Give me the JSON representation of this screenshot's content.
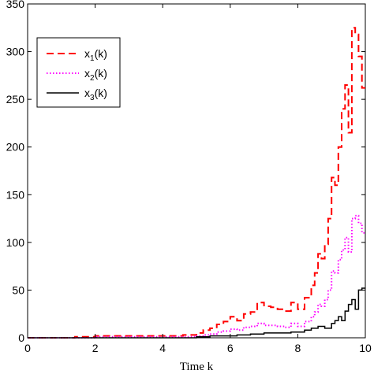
{
  "chart_data": {
    "type": "line",
    "step": true,
    "title": "",
    "xlabel": "Time k",
    "ylabel": "",
    "xlim": [
      0,
      10
    ],
    "ylim": [
      0,
      350
    ],
    "xticks": [
      0,
      2,
      4,
      6,
      8,
      10
    ],
    "yticks": [
      0,
      50,
      100,
      150,
      200,
      250,
      300,
      350
    ],
    "grid": false,
    "legend": {
      "placement": "top-left",
      "entries": [
        {
          "base": "x",
          "sub": "1",
          "tail": "(k)"
        },
        {
          "base": "x",
          "sub": "2",
          "tail": "(k)"
        },
        {
          "base": "x",
          "sub": "3",
          "tail": "(k)"
        }
      ]
    },
    "series": [
      {
        "name": "x1(k)",
        "color": "#ff0000",
        "style": "dashed",
        "x": [
          0,
          1.4,
          2.0,
          3.0,
          4.2,
          4.6,
          5.0,
          5.2,
          5.4,
          5.6,
          5.8,
          6.0,
          6.2,
          6.4,
          6.6,
          6.8,
          7.0,
          7.2,
          7.4,
          7.6,
          7.8,
          8.0,
          8.2,
          8.4,
          8.5,
          8.6,
          8.7,
          8.8,
          8.9,
          9.0,
          9.1,
          9.2,
          9.3,
          9.4,
          9.5,
          9.6,
          9.7,
          9.8,
          9.9,
          10.0
        ],
        "y": [
          0,
          1,
          2,
          2,
          2,
          3,
          5,
          8,
          10,
          14,
          17,
          22,
          18,
          25,
          27,
          37,
          33,
          32,
          30,
          28,
          37,
          30,
          42,
          55,
          68,
          88,
          83,
          98,
          125,
          168,
          160,
          200,
          240,
          265,
          215,
          325,
          318,
          295,
          262,
          262
        ]
      },
      {
        "name": "x2(k)",
        "color": "#ff00ff",
        "style": "dotted",
        "x": [
          0,
          2.0,
          4.5,
          5.0,
          5.2,
          5.4,
          5.6,
          5.8,
          6.0,
          6.2,
          6.4,
          6.6,
          6.8,
          7.0,
          7.2,
          7.4,
          7.6,
          7.8,
          8.0,
          8.2,
          8.4,
          8.5,
          8.6,
          8.7,
          8.8,
          8.9,
          9.0,
          9.1,
          9.2,
          9.3,
          9.4,
          9.5,
          9.6,
          9.7,
          9.8,
          9.9,
          10.0
        ],
        "y": [
          0,
          1,
          1,
          2,
          3,
          4,
          6,
          7,
          9,
          8,
          11,
          12,
          15,
          13,
          13,
          12,
          11,
          15,
          12,
          17,
          22,
          27,
          35,
          33,
          40,
          50,
          70,
          68,
          82,
          92,
          105,
          90,
          125,
          128,
          120,
          110,
          110
        ]
      },
      {
        "name": "x3(k)",
        "color": "#000000",
        "style": "solid",
        "x": [
          0,
          4.5,
          5.0,
          5.4,
          5.8,
          6.2,
          6.6,
          7.0,
          7.4,
          7.8,
          8.0,
          8.2,
          8.4,
          8.6,
          8.8,
          9.0,
          9.1,
          9.2,
          9.3,
          9.4,
          9.5,
          9.6,
          9.7,
          9.8,
          9.9,
          10.0
        ],
        "y": [
          0,
          0,
          1,
          2,
          2,
          3,
          4,
          5,
          5,
          6,
          6,
          8,
          10,
          12,
          10,
          15,
          18,
          22,
          18,
          28,
          35,
          40,
          30,
          50,
          52,
          52
        ]
      }
    ]
  }
}
